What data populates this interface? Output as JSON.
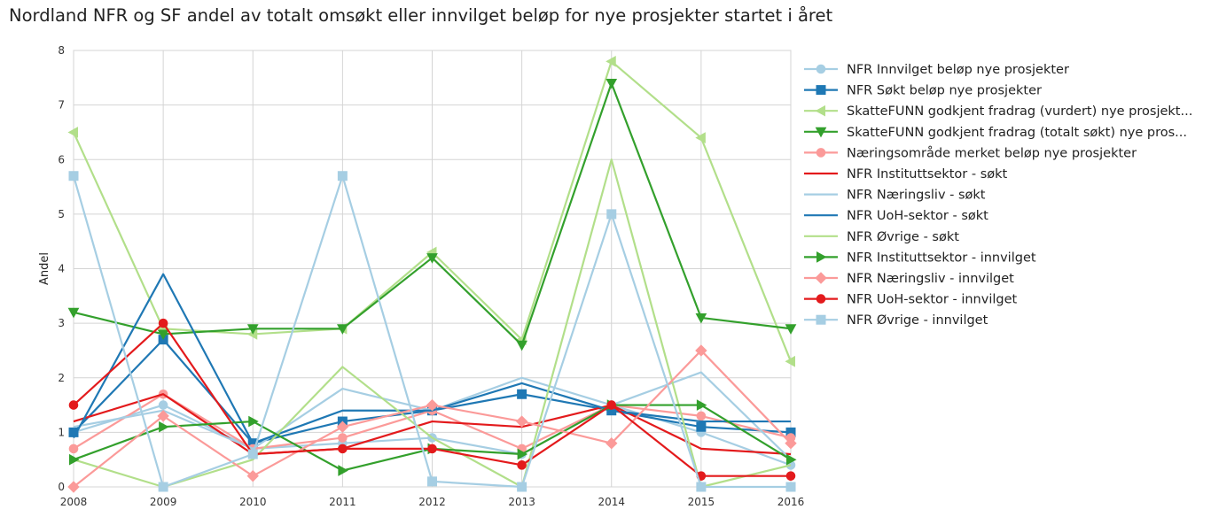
{
  "chart_data": {
    "type": "line",
    "title": "Nordland NFR og SF andel av totalt omsøkt eller innvilget beløp for nye prosjekter startet i året",
    "xlabel": "",
    "ylabel": "Andel",
    "x": [
      2008,
      2009,
      2010,
      2011,
      2012,
      2013,
      2014,
      2015,
      2016
    ],
    "x_ticks": [
      "2008",
      "2009",
      "2010",
      "2011",
      "2012",
      "2013",
      "2014",
      "2015",
      "2016"
    ],
    "y_ticks": [
      "0",
      "1",
      "2",
      "3",
      "4",
      "5",
      "6",
      "7",
      "8"
    ],
    "ylim": [
      0,
      8
    ],
    "xlim": [
      2008,
      2016
    ],
    "grid": true,
    "legend_position": "right-outside-top",
    "series": [
      {
        "name": "NFR Innvilget beløp nye prosjekter",
        "color": "#a6cee3",
        "marker": "circle",
        "values": [
          1.0,
          1.5,
          0.7,
          0.8,
          0.9,
          0.6,
          1.5,
          1.0,
          0.4
        ]
      },
      {
        "name": "NFR Søkt beløp nye prosjekter",
        "color": "#1f78b4",
        "marker": "square",
        "values": [
          1.0,
          2.7,
          0.8,
          1.2,
          1.4,
          1.7,
          1.4,
          1.1,
          1.0
        ]
      },
      {
        "name": "SkatteFUNN godkjent fradrag (vurdert) nye prosjekt...",
        "color": "#b2df8a",
        "marker": "triangle-left",
        "values": [
          6.5,
          2.9,
          2.8,
          2.9,
          4.3,
          2.7,
          7.8,
          6.4,
          2.3
        ]
      },
      {
        "name": "SkatteFUNN godkjent fradrag (totalt søkt) nye pros...",
        "color": "#33a02c",
        "marker": "triangle-down",
        "values": [
          3.2,
          2.8,
          2.9,
          2.9,
          4.2,
          2.6,
          7.4,
          3.1,
          2.9
        ]
      },
      {
        "name": "Næringsområde merket beløp nye prosjekter",
        "color": "#fb9a99",
        "marker": "octagon",
        "values": [
          0.7,
          1.7,
          0.7,
          0.9,
          1.4,
          0.7,
          1.5,
          1.3,
          0.9
        ]
      },
      {
        "name": "NFR Instituttsektor - søkt",
        "color": "#e31a1c",
        "marker": "none",
        "values": [
          1.2,
          1.7,
          0.6,
          0.7,
          1.2,
          1.1,
          1.5,
          0.7,
          0.6
        ]
      },
      {
        "name": "NFR Næringsliv - søkt",
        "color": "#a6cee3",
        "marker": "none",
        "values": [
          1.1,
          1.4,
          0.7,
          1.8,
          1.4,
          2.0,
          1.5,
          2.1,
          0.5
        ]
      },
      {
        "name": "NFR UoH-sektor - søkt",
        "color": "#1f78b4",
        "marker": "none",
        "values": [
          0.9,
          3.9,
          0.8,
          1.4,
          1.4,
          1.9,
          1.4,
          1.2,
          1.2
        ]
      },
      {
        "name": "NFR Øvrige - søkt",
        "color": "#b2df8a",
        "marker": "none",
        "values": [
          0.5,
          0.0,
          0.5,
          2.2,
          0.9,
          0.0,
          6.0,
          0.0,
          0.4
        ]
      },
      {
        "name": "NFR Instituttsektor - innvilget",
        "color": "#33a02c",
        "marker": "triangle-right",
        "values": [
          0.5,
          1.1,
          1.2,
          0.3,
          0.7,
          0.6,
          1.5,
          1.5,
          0.5
        ]
      },
      {
        "name": "NFR Næringsliv - innvilget",
        "color": "#fb9a99",
        "marker": "diamond",
        "values": [
          0.0,
          1.3,
          0.2,
          1.1,
          1.5,
          1.2,
          0.8,
          2.5,
          0.8
        ]
      },
      {
        "name": "NFR UoH-sektor - innvilget",
        "color": "#e31a1c",
        "marker": "circle",
        "values": [
          1.5,
          3.0,
          0.6,
          0.7,
          0.7,
          0.4,
          1.5,
          0.2,
          0.2
        ]
      },
      {
        "name": "NFR Øvrige - innvilget",
        "color": "#a6cee3",
        "marker": "square",
        "values": [
          5.7,
          0.0,
          0.6,
          5.7,
          0.1,
          0.0,
          5.0,
          0.0,
          0.0
        ]
      }
    ]
  }
}
